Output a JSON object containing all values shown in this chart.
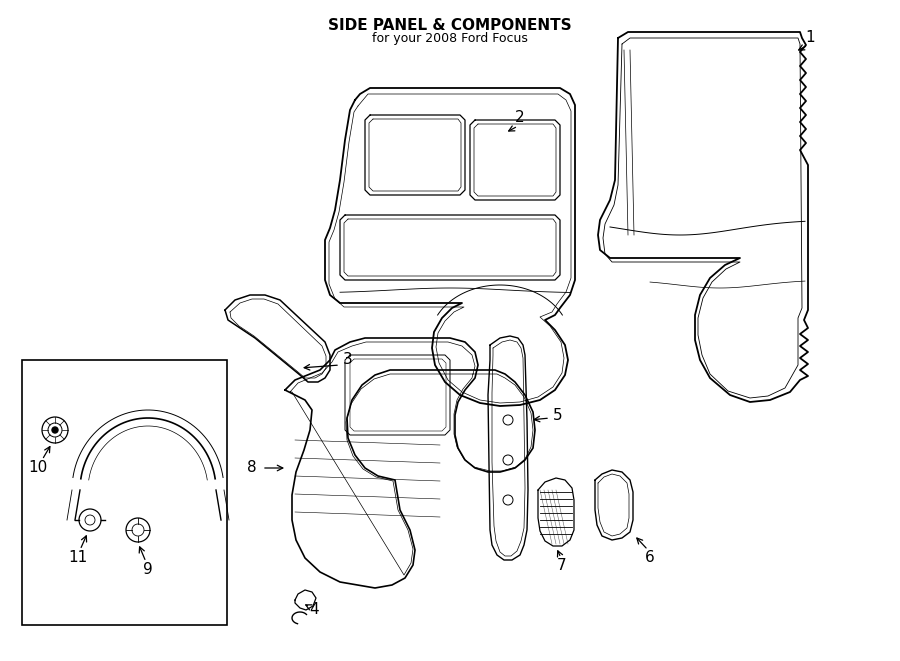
{
  "title": "SIDE PANEL & COMPONENTS",
  "subtitle": "for your 2008 Ford Focus",
  "bg": "#ffffff",
  "lc": "#000000",
  "fig_w": 9.0,
  "fig_h": 6.61
}
